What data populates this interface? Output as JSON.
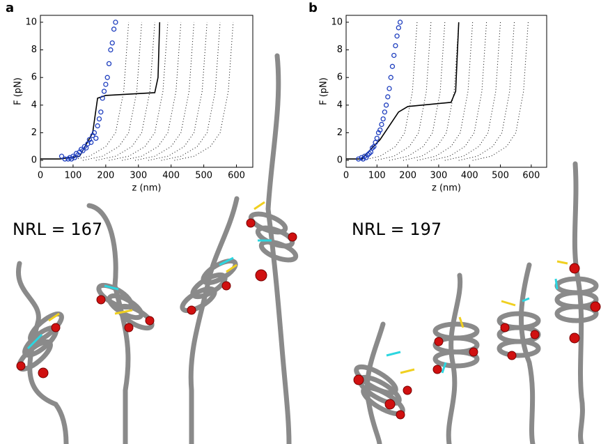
{
  "chart_data": [
    {
      "type": "line",
      "panel_label": "a",
      "annotation": "NRL = 167",
      "x_label": "z (nm)",
      "y_label": "F (pN)",
      "xlim": [
        0,
        650
      ],
      "ylim": [
        -0.5,
        10.5
      ],
      "xticks": [
        0,
        100,
        200,
        300,
        400,
        500,
        600
      ],
      "yticks": [
        0,
        2,
        4,
        6,
        8,
        10
      ],
      "series": [
        {
          "style": "dotted",
          "color": "#000000",
          "x": [
            90,
            150,
            200,
            230,
            255,
            270
          ],
          "values": [
            0,
            0.3,
            1,
            2,
            5,
            10
          ]
        },
        {
          "style": "dotted",
          "color": "#000000",
          "x": [
            130,
            190,
            240,
            270,
            295,
            310
          ],
          "values": [
            0,
            0.3,
            1,
            2,
            5,
            10
          ]
        },
        {
          "style": "dotted",
          "color": "#000000",
          "x": [
            170,
            230,
            280,
            310,
            335,
            350
          ],
          "values": [
            0,
            0.3,
            1,
            2,
            5,
            10
          ]
        },
        {
          "style": "dotted",
          "color": "#000000",
          "x": [
            210,
            270,
            320,
            350,
            375,
            390
          ],
          "values": [
            0,
            0.3,
            1,
            2,
            5,
            10
          ]
        },
        {
          "style": "dotted",
          "color": "#000000",
          "x": [
            250,
            310,
            360,
            390,
            415,
            430
          ],
          "values": [
            0,
            0.3,
            1,
            2,
            5,
            10
          ]
        },
        {
          "style": "dotted",
          "color": "#000000",
          "x": [
            290,
            350,
            400,
            430,
            455,
            470
          ],
          "values": [
            0,
            0.3,
            1,
            2,
            5,
            10
          ]
        },
        {
          "style": "dotted",
          "color": "#000000",
          "x": [
            330,
            390,
            440,
            470,
            495,
            510
          ],
          "values": [
            0,
            0.3,
            1,
            2,
            5,
            10
          ]
        },
        {
          "style": "dotted",
          "color": "#000000",
          "x": [
            370,
            430,
            480,
            510,
            535,
            550
          ],
          "values": [
            0,
            0.3,
            1,
            2,
            5,
            10
          ]
        },
        {
          "style": "dotted",
          "color": "#000000",
          "x": [
            410,
            470,
            520,
            550,
            575,
            590
          ],
          "values": [
            0,
            0.3,
            1,
            2,
            5,
            10
          ]
        },
        {
          "style": "solid",
          "color": "#000000",
          "x": [
            0,
            60,
            120,
            160,
            175,
            200,
            350,
            360,
            365
          ],
          "values": [
            0.1,
            0.1,
            0.3,
            2,
            4.5,
            4.7,
            4.9,
            6,
            10
          ]
        },
        {
          "style": "markers",
          "color": "#1f3fbf",
          "x": [
            65,
            75,
            85,
            90,
            95,
            100,
            105,
            110,
            115,
            120,
            125,
            130,
            135,
            140,
            145,
            150,
            155,
            160,
            165,
            170,
            175,
            180,
            185,
            190,
            195,
            200,
            205,
            210,
            215,
            220,
            225,
            230
          ],
          "values": [
            0.3,
            0.1,
            0.1,
            0.2,
            0.1,
            0.3,
            0.2,
            0.5,
            0.4,
            0.6,
            0.8,
            0.7,
            1.0,
            0.9,
            1.2,
            1.5,
            1.3,
            1.8,
            2.0,
            1.6,
            2.5,
            3.0,
            3.5,
            4.5,
            5.0,
            5.5,
            6.0,
            7.0,
            8.0,
            8.5,
            9.5,
            10
          ]
        }
      ]
    },
    {
      "type": "line",
      "panel_label": "b",
      "annotation": "NRL = 197",
      "x_label": "z (nm)",
      "y_label": "F (pN)",
      "xlim": [
        0,
        650
      ],
      "ylim": [
        -0.5,
        10.5
      ],
      "xticks": [
        0,
        100,
        200,
        300,
        400,
        500,
        600
      ],
      "yticks": [
        0,
        2,
        4,
        6,
        8,
        10
      ],
      "series": [
        {
          "style": "dotted",
          "color": "#000000",
          "x": [
            50,
            110,
            160,
            190,
            215,
            230
          ],
          "values": [
            0,
            0.3,
            1,
            2,
            5,
            10
          ]
        },
        {
          "style": "dotted",
          "color": "#000000",
          "x": [
            95,
            155,
            205,
            235,
            260,
            275
          ],
          "values": [
            0,
            0.3,
            1,
            2,
            5,
            10
          ]
        },
        {
          "style": "dotted",
          "color": "#000000",
          "x": [
            140,
            200,
            250,
            280,
            305,
            320
          ],
          "values": [
            0,
            0.3,
            1,
            2,
            5,
            10
          ]
        },
        {
          "style": "dotted",
          "color": "#000000",
          "x": [
            185,
            245,
            295,
            325,
            350,
            365
          ],
          "values": [
            0,
            0.3,
            1,
            2,
            5,
            10
          ]
        },
        {
          "style": "dotted",
          "color": "#000000",
          "x": [
            230,
            290,
            340,
            370,
            395,
            410
          ],
          "values": [
            0,
            0.3,
            1,
            2,
            5,
            10
          ]
        },
        {
          "style": "dotted",
          "color": "#000000",
          "x": [
            275,
            335,
            385,
            415,
            440,
            455
          ],
          "values": [
            0,
            0.3,
            1,
            2,
            5,
            10
          ]
        },
        {
          "style": "dotted",
          "color": "#000000",
          "x": [
            320,
            380,
            430,
            460,
            485,
            500
          ],
          "values": [
            0,
            0.3,
            1,
            2,
            5,
            10
          ]
        },
        {
          "style": "dotted",
          "color": "#000000",
          "x": [
            365,
            425,
            475,
            505,
            530,
            545
          ],
          "values": [
            0,
            0.3,
            1,
            2,
            5,
            10
          ]
        },
        {
          "style": "dotted",
          "color": "#000000",
          "x": [
            410,
            470,
            520,
            550,
            575,
            590
          ],
          "values": [
            0,
            0.3,
            1,
            2,
            5,
            10
          ]
        },
        {
          "style": "solid",
          "color": "#000000",
          "x": [
            0,
            50,
            110,
            170,
            200,
            340,
            355,
            365
          ],
          "values": [
            0.1,
            0.1,
            1.5,
            3.5,
            3.9,
            4.2,
            5,
            10
          ]
        },
        {
          "style": "markers",
          "color": "#1f3fbf",
          "x": [
            40,
            50,
            55,
            60,
            65,
            70,
            75,
            80,
            85,
            90,
            95,
            100,
            105,
            110,
            115,
            120,
            125,
            130,
            135,
            140,
            145,
            150,
            155,
            160,
            165,
            170,
            175
          ],
          "values": [
            0.1,
            0.2,
            0.1,
            0.3,
            0.2,
            0.4,
            0.5,
            0.6,
            0.9,
            1.0,
            1.3,
            1.6,
            2.0,
            2.2,
            2.6,
            3.0,
            3.5,
            4.0,
            4.6,
            5.2,
            6.0,
            6.8,
            7.6,
            8.3,
            9.0,
            9.6,
            10
          ]
        }
      ]
    }
  ]
}
